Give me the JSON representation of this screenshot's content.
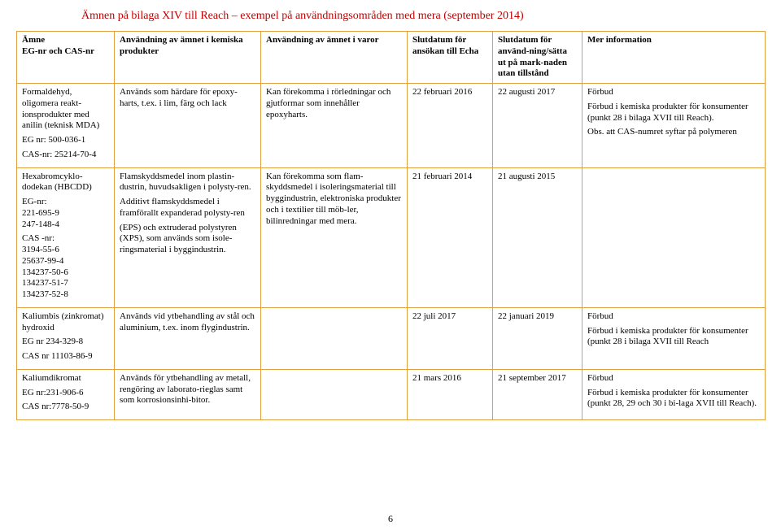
{
  "title": "Ämnen på bilaga XIV till Reach – exempel på användningsområden med mera (september 2014)",
  "page_number": "6",
  "colors": {
    "title": "#c00000",
    "border": "#e0a040",
    "background": "#ffffff",
    "text": "#000000"
  },
  "headers": [
    "Ämne\nEG-nr och CAS-nr",
    "Användning av ämnet i kemiska produkter",
    "Användning av ämnet i varor",
    "Slutdatum för ansökan till Echa",
    "Slutdatum för använd-ning/sätta ut på mark-naden utan tillstånd",
    "Mer information"
  ],
  "rows": [
    {
      "c0": [
        "Formaldehyd, oligomera reakt-ionsprodukter med anilin (teknisk MDA)",
        "EG nr: 500-036-1",
        "CAS-nr: 25214-70-4"
      ],
      "c1": [
        "Används som härdare för epoxy-harts, t.ex. i lim, färg och lack"
      ],
      "c2": [
        "Kan förekomma i rörledningar och gjutformar som innehåller epoxyharts."
      ],
      "c3": [
        "22 februari 2016"
      ],
      "c4": [
        "22 augusti 2017"
      ],
      "c5": [
        "Förbud",
        "Förbud i kemiska produkter för konsumenter (punkt 28 i bilaga XVII till Reach).",
        "Obs. att CAS-numret syftar på polymeren"
      ]
    },
    {
      "c0": [
        "Hexabromcyklo-dodekan (HBCDD)",
        "EG-nr:\n221-695-9\n247-148-4",
        "CAS -nr:\n3194-55-6\n25637-99-4\n134237-50-6\n134237-51-7\n134237-52-8"
      ],
      "c1": [
        "Flamskyddsmedel inom plastin-dustrin, huvudsakligen i polysty-ren.",
        "Additivt flamskyddsmedel i framförallt expanderad polysty-ren",
        "(EPS) och extruderad polystyren (XPS), som används som isole-ringsmaterial i byggindustrin."
      ],
      "c2": [
        "Kan förekomma som flam-skyddsmedel i isoleringsmaterial till byggindustrin, elektroniska produkter och i textilier till möb-ler, bilinredningar med mera."
      ],
      "c3": [
        "21 februari 2014"
      ],
      "c4": [
        "21 augusti 2015"
      ],
      "c5": []
    },
    {
      "c0": [
        "Kaliumbis (zinkromat) hydroxid",
        "EG nr 234-329-8",
        "CAS nr 11103-86-9"
      ],
      "c1": [
        "Används vid ytbehandling av stål och aluminium, t.ex. inom flygindustrin."
      ],
      "c2": [],
      "c3": [
        "22 juli 2017"
      ],
      "c4": [
        "22 januari 2019"
      ],
      "c5": [
        "Förbud",
        "Förbud i kemiska produkter för konsumenter (punkt 28 i bilaga XVII till Reach"
      ]
    },
    {
      "c0": [
        "Kaliumdikromat",
        "EG nr:231-906-6",
        "CAS nr:7778-50-9"
      ],
      "c1": [
        "Används för ytbehandling av metall, rengöring av laborato-rieglas samt som korrosionsinhi-bitor."
      ],
      "c2": [],
      "c3": [
        "21 mars 2016"
      ],
      "c4": [
        "21 september 2017"
      ],
      "c5": [
        "Förbud",
        "Förbud i kemiska produkter för konsumenter (punkt 28, 29 och 30 i bi-laga XVII till Reach)."
      ]
    }
  ]
}
